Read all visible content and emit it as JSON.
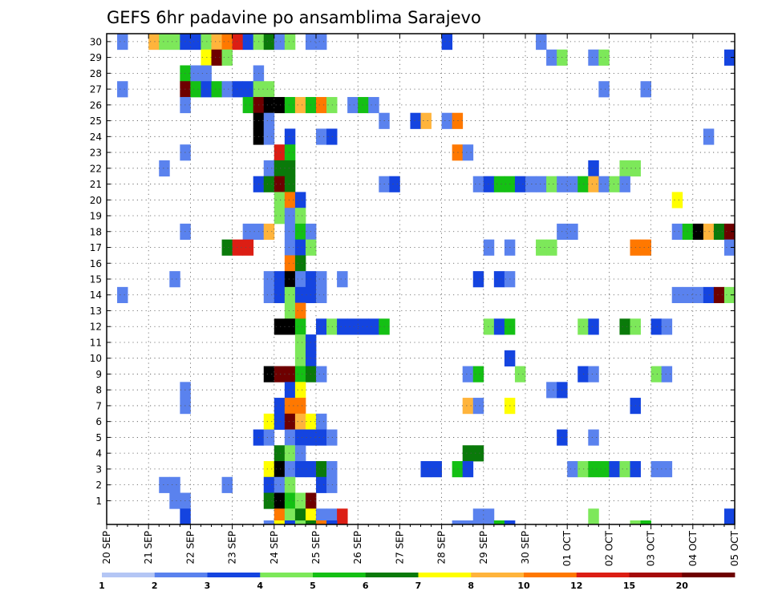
{
  "chart_data": {
    "type": "heatmap",
    "title": "GEFS 6hr padavine po ansamblima Sarajevo",
    "xlabel": "",
    "ylabel": "",
    "x_tick_labels": [
      "20 SEP",
      "21 SEP",
      "22 SEP",
      "23 SEP",
      "24 SEP",
      "25 SEP",
      "26 SEP",
      "27 SEP",
      "28 SEP",
      "29 SEP",
      "30 SEP",
      "01 OCT",
      "02 OCT",
      "03 OCT",
      "04 OCT",
      "05 OCT"
    ],
    "y_tick_labels": [
      "1",
      "2",
      "3",
      "4",
      "5",
      "6",
      "7",
      "8",
      "9",
      "10",
      "11",
      "12",
      "13",
      "14",
      "15",
      "16",
      "17",
      "18",
      "19",
      "20",
      "21",
      "22",
      "23",
      "24",
      "25",
      "26",
      "27",
      "28",
      "29",
      "30"
    ],
    "xlim": [
      0,
      60
    ],
    "ylim": [
      0,
      30
    ],
    "grid": true,
    "legend": {
      "placement": "bottom",
      "labels": [
        "1",
        "2",
        "3",
        "4",
        "5",
        "6",
        "7",
        "8",
        "10",
        "12",
        "15",
        "20"
      ],
      "colors": [
        "#b4c6f5",
        "#5a82ee",
        "#1444e0",
        "#7de85a",
        "#14c014",
        "#0a7a0a",
        "#ffff00",
        "#ffb43c",
        "#ff7800",
        "#dc1e14",
        "#a50a0a",
        "#6e0000"
      ]
    },
    "cells": [
      [
        1,
        30,
        1
      ],
      [
        4,
        30,
        7
      ],
      [
        5,
        30,
        3
      ],
      [
        6,
        30,
        3
      ],
      [
        7,
        30,
        2
      ],
      [
        8,
        30,
        2
      ],
      [
        9,
        30,
        3
      ],
      [
        10,
        30,
        7
      ],
      [
        11,
        30,
        8
      ],
      [
        12,
        30,
        9
      ],
      [
        13,
        30,
        2
      ],
      [
        14,
        30,
        3
      ],
      [
        15,
        30,
        5
      ],
      [
        16,
        30,
        1
      ],
      [
        17,
        30,
        3
      ],
      [
        19,
        30,
        1
      ],
      [
        20,
        30,
        1
      ],
      [
        32,
        30,
        2
      ],
      [
        41,
        30,
        1
      ],
      [
        9,
        29,
        6
      ],
      [
        10,
        29,
        11
      ],
      [
        11,
        29,
        3
      ],
      [
        42,
        29,
        1
      ],
      [
        43,
        29,
        3
      ],
      [
        46,
        29,
        1
      ],
      [
        47,
        29,
        3
      ],
      [
        59,
        29,
        2
      ],
      [
        7,
        28,
        4
      ],
      [
        8,
        28,
        1
      ],
      [
        9,
        28,
        1
      ],
      [
        14,
        28,
        1
      ],
      [
        1,
        27,
        1
      ],
      [
        7,
        27,
        11
      ],
      [
        8,
        27,
        4
      ],
      [
        9,
        27,
        2
      ],
      [
        10,
        27,
        4
      ],
      [
        11,
        27,
        1
      ],
      [
        12,
        27,
        2
      ],
      [
        13,
        27,
        2
      ],
      [
        14,
        27,
        3
      ],
      [
        15,
        27,
        3
      ],
      [
        47,
        27,
        1
      ],
      [
        51,
        27,
        1
      ],
      [
        7,
        26,
        1
      ],
      [
        13,
        26,
        4
      ],
      [
        14,
        26,
        11
      ],
      [
        15,
        26,
        12
      ],
      [
        16,
        26,
        12
      ],
      [
        17,
        26,
        4
      ],
      [
        18,
        26,
        7
      ],
      [
        19,
        26,
        4
      ],
      [
        20,
        26,
        8
      ],
      [
        21,
        26,
        3
      ],
      [
        23,
        26,
        1
      ],
      [
        24,
        26,
        4
      ],
      [
        25,
        26,
        1
      ],
      [
        14,
        25,
        12
      ],
      [
        15,
        25,
        1
      ],
      [
        26,
        25,
        1
      ],
      [
        29,
        25,
        2
      ],
      [
        30,
        25,
        7
      ],
      [
        32,
        25,
        1
      ],
      [
        33,
        25,
        8
      ],
      [
        14,
        24,
        12
      ],
      [
        15,
        24,
        1
      ],
      [
        17,
        24,
        2
      ],
      [
        20,
        24,
        1
      ],
      [
        21,
        24,
        2
      ],
      [
        57,
        24,
        1
      ],
      [
        7,
        23,
        1
      ],
      [
        16,
        23,
        9
      ],
      [
        17,
        23,
        4
      ],
      [
        33,
        23,
        8
      ],
      [
        34,
        23,
        1
      ],
      [
        5,
        22,
        1
      ],
      [
        15,
        22,
        1
      ],
      [
        16,
        22,
        5
      ],
      [
        17,
        22,
        5
      ],
      [
        46,
        22,
        2
      ],
      [
        49,
        22,
        3
      ],
      [
        50,
        22,
        3
      ],
      [
        14,
        21,
        2
      ],
      [
        15,
        21,
        5
      ],
      [
        16,
        21,
        11
      ],
      [
        17,
        21,
        5
      ],
      [
        26,
        21,
        1
      ],
      [
        27,
        21,
        2
      ],
      [
        35,
        21,
        1
      ],
      [
        36,
        21,
        2
      ],
      [
        37,
        21,
        4
      ],
      [
        38,
        21,
        4
      ],
      [
        39,
        21,
        2
      ],
      [
        40,
        21,
        1
      ],
      [
        41,
        21,
        1
      ],
      [
        42,
        21,
        3
      ],
      [
        43,
        21,
        1
      ],
      [
        44,
        21,
        1
      ],
      [
        45,
        21,
        4
      ],
      [
        46,
        21,
        7
      ],
      [
        47,
        21,
        1
      ],
      [
        48,
        21,
        3
      ],
      [
        49,
        21,
        1
      ],
      [
        16,
        20,
        3
      ],
      [
        17,
        20,
        8
      ],
      [
        18,
        20,
        2
      ],
      [
        54,
        20,
        6
      ],
      [
        16,
        19,
        3
      ],
      [
        17,
        19,
        1
      ],
      [
        18,
        19,
        3
      ],
      [
        7,
        18,
        1
      ],
      [
        13,
        18,
        1
      ],
      [
        14,
        18,
        1
      ],
      [
        15,
        18,
        7
      ],
      [
        17,
        18,
        1
      ],
      [
        18,
        18,
        4
      ],
      [
        19,
        18,
        1
      ],
      [
        43,
        18,
        1
      ],
      [
        44,
        18,
        1
      ],
      [
        54,
        18,
        1
      ],
      [
        55,
        18,
        4
      ],
      [
        56,
        18,
        12
      ],
      [
        57,
        18,
        7
      ],
      [
        58,
        18,
        5
      ],
      [
        59,
        18,
        11
      ],
      [
        11,
        17,
        5
      ],
      [
        12,
        17,
        9
      ],
      [
        13,
        17,
        9
      ],
      [
        17,
        17,
        1
      ],
      [
        18,
        17,
        2
      ],
      [
        19,
        17,
        3
      ],
      [
        36,
        17,
        1
      ],
      [
        38,
        17,
        1
      ],
      [
        41,
        17,
        3
      ],
      [
        42,
        17,
        3
      ],
      [
        50,
        17,
        8
      ],
      [
        51,
        17,
        8
      ],
      [
        59,
        17,
        1
      ],
      [
        17,
        16,
        8
      ],
      [
        18,
        16,
        5
      ],
      [
        6,
        15,
        1
      ],
      [
        15,
        15,
        1
      ],
      [
        16,
        15,
        2
      ],
      [
        17,
        15,
        12
      ],
      [
        18,
        15,
        1
      ],
      [
        19,
        15,
        2
      ],
      [
        20,
        15,
        1
      ],
      [
        22,
        15,
        1
      ],
      [
        35,
        15,
        2
      ],
      [
        37,
        15,
        2
      ],
      [
        38,
        15,
        1
      ],
      [
        1,
        14,
        1
      ],
      [
        15,
        14,
        1
      ],
      [
        16,
        14,
        2
      ],
      [
        17,
        14,
        3
      ],
      [
        18,
        14,
        2
      ],
      [
        19,
        14,
        2
      ],
      [
        20,
        14,
        1
      ],
      [
        54,
        14,
        1
      ],
      [
        55,
        14,
        1
      ],
      [
        56,
        14,
        1
      ],
      [
        57,
        14,
        2
      ],
      [
        58,
        14,
        11
      ],
      [
        59,
        14,
        3
      ],
      [
        17,
        13,
        3
      ],
      [
        18,
        13,
        8
      ],
      [
        16,
        12,
        12
      ],
      [
        17,
        12,
        12
      ],
      [
        18,
        12,
        4
      ],
      [
        20,
        12,
        2
      ],
      [
        21,
        12,
        3
      ],
      [
        22,
        12,
        2
      ],
      [
        23,
        12,
        2
      ],
      [
        24,
        12,
        2
      ],
      [
        25,
        12,
        2
      ],
      [
        26,
        12,
        4
      ],
      [
        36,
        12,
        3
      ],
      [
        37,
        12,
        2
      ],
      [
        38,
        12,
        4
      ],
      [
        45,
        12,
        3
      ],
      [
        46,
        12,
        2
      ],
      [
        49,
        12,
        5
      ],
      [
        50,
        12,
        3
      ],
      [
        52,
        12,
        2
      ],
      [
        53,
        12,
        1
      ],
      [
        18,
        11,
        3
      ],
      [
        19,
        11,
        2
      ],
      [
        18,
        10,
        3
      ],
      [
        19,
        10,
        2
      ],
      [
        38,
        10,
        2
      ],
      [
        15,
        9,
        12
      ],
      [
        16,
        9,
        11
      ],
      [
        17,
        9,
        11
      ],
      [
        18,
        9,
        4
      ],
      [
        19,
        9,
        5
      ],
      [
        20,
        9,
        1
      ],
      [
        34,
        9,
        1
      ],
      [
        35,
        9,
        4
      ],
      [
        39,
        9,
        3
      ],
      [
        45,
        9,
        2
      ],
      [
        46,
        9,
        1
      ],
      [
        52,
        9,
        3
      ],
      [
        53,
        9,
        1
      ],
      [
        7,
        8,
        1
      ],
      [
        17,
        8,
        2
      ],
      [
        18,
        8,
        6
      ],
      [
        42,
        8,
        1
      ],
      [
        43,
        8,
        2
      ],
      [
        7,
        7,
        1
      ],
      [
        16,
        7,
        2
      ],
      [
        17,
        7,
        8
      ],
      [
        18,
        7,
        8
      ],
      [
        34,
        7,
        7
      ],
      [
        35,
        7,
        1
      ],
      [
        38,
        7,
        6
      ],
      [
        50,
        7,
        2
      ],
      [
        15,
        6,
        6
      ],
      [
        16,
        6,
        2
      ],
      [
        17,
        6,
        11
      ],
      [
        18,
        6,
        7
      ],
      [
        19,
        6,
        6
      ],
      [
        20,
        6,
        1
      ],
      [
        14,
        5,
        2
      ],
      [
        15,
        5,
        1
      ],
      [
        17,
        5,
        1
      ],
      [
        18,
        5,
        2
      ],
      [
        19,
        5,
        2
      ],
      [
        20,
        5,
        2
      ],
      [
        21,
        5,
        1
      ],
      [
        43,
        5,
        2
      ],
      [
        46,
        5,
        1
      ],
      [
        16,
        4,
        5
      ],
      [
        17,
        4,
        3
      ],
      [
        18,
        4,
        1
      ],
      [
        34,
        4,
        5
      ],
      [
        35,
        4,
        5
      ],
      [
        15,
        3,
        6
      ],
      [
        16,
        3,
        12
      ],
      [
        17,
        3,
        1
      ],
      [
        18,
        3,
        2
      ],
      [
        19,
        3,
        2
      ],
      [
        20,
        3,
        5
      ],
      [
        21,
        3,
        1
      ],
      [
        30,
        3,
        2
      ],
      [
        31,
        3,
        2
      ],
      [
        33,
        3,
        4
      ],
      [
        34,
        3,
        2
      ],
      [
        44,
        3,
        1
      ],
      [
        45,
        3,
        3
      ],
      [
        46,
        3,
        4
      ],
      [
        47,
        3,
        4
      ],
      [
        48,
        3,
        2
      ],
      [
        49,
        3,
        3
      ],
      [
        50,
        3,
        2
      ],
      [
        52,
        3,
        1
      ],
      [
        53,
        3,
        1
      ],
      [
        5,
        2,
        1
      ],
      [
        6,
        2,
        1
      ],
      [
        11,
        2,
        1
      ],
      [
        15,
        2,
        2
      ],
      [
        16,
        2,
        1
      ],
      [
        17,
        2,
        3
      ],
      [
        20,
        2,
        2
      ],
      [
        21,
        2,
        1
      ],
      [
        6,
        1,
        1
      ],
      [
        7,
        1,
        1
      ],
      [
        15,
        1,
        5
      ],
      [
        16,
        1,
        12
      ],
      [
        17,
        1,
        4
      ],
      [
        18,
        1,
        3
      ],
      [
        19,
        1,
        11
      ],
      [
        7,
        0,
        2
      ],
      [
        16,
        0,
        8
      ],
      [
        17,
        0,
        3
      ],
      [
        18,
        0,
        5
      ],
      [
        19,
        0,
        6
      ],
      [
        20,
        0,
        1
      ],
      [
        21,
        0,
        1
      ],
      [
        22,
        0,
        9
      ],
      [
        35,
        0,
        1
      ],
      [
        36,
        0,
        1
      ],
      [
        46,
        0,
        3
      ],
      [
        59,
        0,
        2
      ],
      [
        15,
        -1,
        1
      ],
      [
        16,
        -1,
        6
      ],
      [
        17,
        -1,
        2
      ],
      [
        18,
        -1,
        3
      ],
      [
        19,
        -1,
        5
      ],
      [
        20,
        -1,
        8
      ],
      [
        21,
        -1,
        2
      ],
      [
        33,
        -1,
        1
      ],
      [
        34,
        -1,
        1
      ],
      [
        37,
        -1,
        4
      ],
      [
        38,
        -1,
        2
      ],
      [
        50,
        -1,
        3
      ],
      [
        51,
        -1,
        4
      ]
    ]
  }
}
